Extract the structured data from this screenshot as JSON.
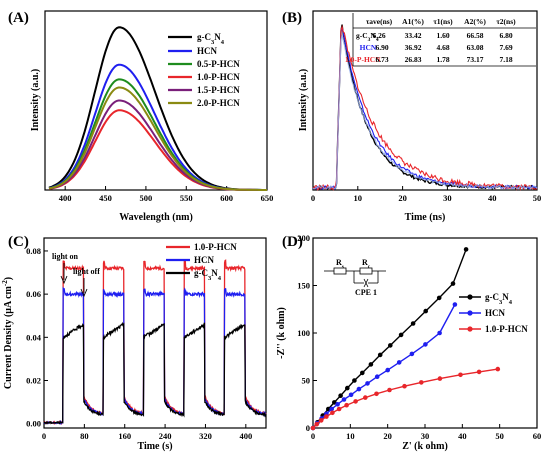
{
  "chart_data": [
    {
      "id": "A",
      "panel_label": "(A)",
      "type": "line",
      "xlabel": "Wavelength (nm)",
      "ylabel": "Intensity (a.u.)",
      "xlim": [
        375,
        650
      ],
      "xticks": [
        400,
        450,
        500,
        550,
        600,
        650
      ],
      "ylim": [
        0,
        1.1
      ],
      "yticks_shown": false,
      "legend_position": "top-right",
      "peak_center": 467,
      "series": [
        {
          "name": "g-C3N4",
          "legend_main": "g-C",
          "legend_sub1": "3",
          "legend_mid": "N",
          "legend_sub2": "4",
          "color": "#000000",
          "peak": 1.0
        },
        {
          "name": "HCN",
          "color": "#1f1ff0",
          "peak": 0.77
        },
        {
          "name": "0.5-P-HCN",
          "color": "#1e8c1e",
          "peak": 0.68
        },
        {
          "name": "1.0-P-HCN",
          "color": "#e8262b",
          "peak": 0.49
        },
        {
          "name": "1.5-P-HCN",
          "color": "#7a1f7a",
          "peak": 0.55
        },
        {
          "name": "2.0-P-HCN",
          "color": "#8a8a12",
          "peak": 0.63
        }
      ]
    },
    {
      "id": "B",
      "panel_label": "(B)",
      "type": "line",
      "xlabel": "Time (ns)",
      "ylabel": "Intensity (a.u.)",
      "xlim": [
        0,
        50
      ],
      "xticks": [
        0,
        10,
        20,
        30,
        40,
        50
      ],
      "ylim": [
        0,
        1.05
      ],
      "yticks_shown": false,
      "series": [
        {
          "name": "g-C3N4",
          "color": "#000000",
          "tau": 5.8
        },
        {
          "name": "HCN",
          "color": "#1f1ff0",
          "tau": 6.4
        },
        {
          "name": "1.0-P-HCN",
          "color": "#e8262b",
          "tau": 7.4
        },
        {
          "name": "1.0-P-HCN fit",
          "color": "#8fa8e8",
          "tau": 6.2
        }
      ],
      "table": {
        "headers": [
          "",
          "τave(ns)",
          "A1(%)",
          "τ1(ns)",
          "A2(%)",
          "τ2(ns)"
        ],
        "rows": [
          {
            "sample": "g-C3N4",
            "sample_main": "g-C",
            "sample_sub1": "3",
            "sample_mid": "N",
            "sample_sub2": "4",
            "color": "#000000",
            "values": [
              "6.26",
              "33.42",
              "1.60",
              "66.58",
              "6.80"
            ]
          },
          {
            "sample": "HCN",
            "color": "#1f1ff0",
            "values": [
              "6.90",
              "36.92",
              "4.68",
              "63.08",
              "7.69"
            ]
          },
          {
            "sample": "1.0-P-HCN",
            "color": "#e8262b",
            "values": [
              "6.73",
              "26.83",
              "1.78",
              "73.17",
              "7.18"
            ]
          }
        ]
      }
    },
    {
      "id": "C",
      "panel_label": "(C)",
      "type": "line",
      "xlabel": "Time (s)",
      "ylabel": "Current Density (μA cm⁻²)",
      "ylabel_main": "Current Density (μA cm",
      "ylabel_sup": "-2",
      "ylabel_end": ")",
      "xlim": [
        0,
        440
      ],
      "xticks": [
        0,
        80,
        160,
        240,
        320,
        400
      ],
      "ylim": [
        -0.002,
        0.086
      ],
      "yticks": [
        0.0,
        0.02,
        0.04,
        0.06,
        0.08
      ],
      "ytick_labels": [
        "0.00",
        "0.02",
        "0.04",
        "0.06",
        "0.08"
      ],
      "light_on_intervals": [
        [
          38,
          78
        ],
        [
          118,
          158
        ],
        [
          198,
          238
        ],
        [
          278,
          318
        ],
        [
          358,
          398
        ]
      ],
      "annotations": [
        {
          "text": "light on",
          "x": 40,
          "y": 0.084
        },
        {
          "text": "light off",
          "x": 80,
          "y": 0.073
        }
      ],
      "series": [
        {
          "name": "1.0-P-HCN",
          "color": "#e8262b",
          "on_level": 0.072,
          "on_spike": 0.075,
          "dark_level": 0.009
        },
        {
          "name": "HCN",
          "color": "#1f1ff0",
          "on_level": 0.06,
          "on_spike": 0.062,
          "dark_level": 0.008
        },
        {
          "name": "g-C3N4",
          "color": "#000000",
          "on_start": 0.04,
          "on_end": 0.046,
          "dark_level": 0.007
        }
      ]
    },
    {
      "id": "D",
      "panel_label": "(D)",
      "type": "scatter",
      "xlabel": "Z' (k ohm)",
      "ylabel": "-Z'' (k ohm)",
      "xlim": [
        0,
        60
      ],
      "xticks": [
        0,
        10,
        20,
        30,
        40,
        50,
        60
      ],
      "ylim": [
        0,
        200
      ],
      "yticks": [
        0,
        50,
        100,
        150,
        200
      ],
      "circuit": {
        "r1": "R",
        "r1_sub": "s",
        "r2": "R",
        "r2_sub": "c",
        "cpe": "CPE 1"
      },
      "series": [
        {
          "name": "g-C3N4",
          "color": "#000000",
          "x": [
            0,
            1.2,
            2.6,
            4.1,
            5.7,
            7.4,
            9.2,
            11.1,
            13.2,
            15.5,
            18.0,
            20.7,
            23.6,
            26.8,
            30.2,
            33.8,
            37.5,
            41.0
          ],
          "y": [
            0,
            6,
            13,
            20,
            27,
            34,
            42,
            50,
            58,
            67,
            77,
            87,
            98,
            110,
            123,
            137,
            152,
            188
          ]
        },
        {
          "name": "HCN",
          "color": "#1f1ff0",
          "x": [
            0,
            1.1,
            2.3,
            3.6,
            5.0,
            6.6,
            8.3,
            10.2,
            12.3,
            14.6,
            17.2,
            20.0,
            23.1,
            26.5,
            30.1,
            33.9,
            38.0
          ],
          "y": [
            0,
            5,
            10,
            15,
            20,
            25,
            30,
            35,
            41,
            47,
            54,
            61,
            69,
            78,
            88,
            100,
            130
          ]
        },
        {
          "name": "1.0-P-HCN",
          "color": "#e8262b",
          "x": [
            0,
            1.0,
            2.2,
            3.6,
            5.2,
            7.0,
            9.0,
            11.4,
            14.0,
            17.0,
            20.5,
            24.5,
            29.0,
            34.0,
            39.5,
            44.5,
            49.5
          ],
          "y": [
            0,
            4,
            8,
            12,
            16,
            20,
            24,
            28,
            32,
            36,
            40,
            44,
            48,
            52,
            56,
            59,
            62
          ]
        }
      ]
    }
  ]
}
